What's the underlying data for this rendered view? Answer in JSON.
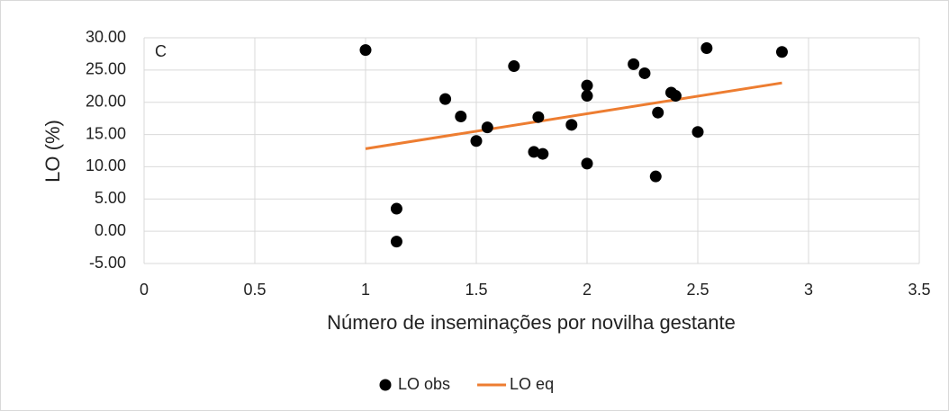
{
  "chart_data": {
    "type": "scatter",
    "annotation": "C",
    "xlabel": "Número de inseminações por novilha gestante",
    "ylabel": "LO (%)",
    "xlim": [
      0,
      3.5
    ],
    "xticks": [
      0,
      0.5,
      1,
      1.5,
      2,
      2.5,
      3,
      3.5
    ],
    "ylim": [
      -5,
      30
    ],
    "yticks": [
      {
        "value": -5,
        "label": "-5.00"
      },
      {
        "value": 0,
        "label": "0.00"
      },
      {
        "value": 5,
        "label": "5.00"
      },
      {
        "value": 10,
        "label": "10.00"
      },
      {
        "value": 15,
        "label": "15.00"
      },
      {
        "value": 20,
        "label": "20.00"
      },
      {
        "value": 25,
        "label": "25.00"
      },
      {
        "value": 30,
        "label": "30.00"
      }
    ],
    "grid": true,
    "legend": "bottom",
    "series": [
      {
        "name": "LO obs",
        "color": "#000000",
        "style": "markers",
        "x": [
          1.0,
          1.14,
          1.14,
          1.36,
          1.43,
          1.5,
          1.55,
          1.67,
          1.76,
          1.78,
          1.8,
          1.93,
          2.0,
          2.0,
          2.0,
          2.21,
          2.26,
          2.31,
          2.32,
          2.38,
          2.4,
          2.5,
          2.54,
          2.88
        ],
        "values": [
          28.1,
          3.5,
          -1.6,
          20.5,
          17.8,
          14.0,
          16.1,
          25.6,
          12.3,
          17.7,
          12.0,
          16.5,
          22.6,
          21.0,
          10.5,
          25.9,
          24.5,
          8.5,
          18.4,
          21.5,
          21.0,
          15.4,
          28.4,
          27.8
        ]
      },
      {
        "name": "LO eq",
        "color": "#ed7d31",
        "style": "line",
        "x": [
          1.0,
          2.88
        ],
        "values": [
          12.8,
          23.0
        ]
      }
    ]
  }
}
